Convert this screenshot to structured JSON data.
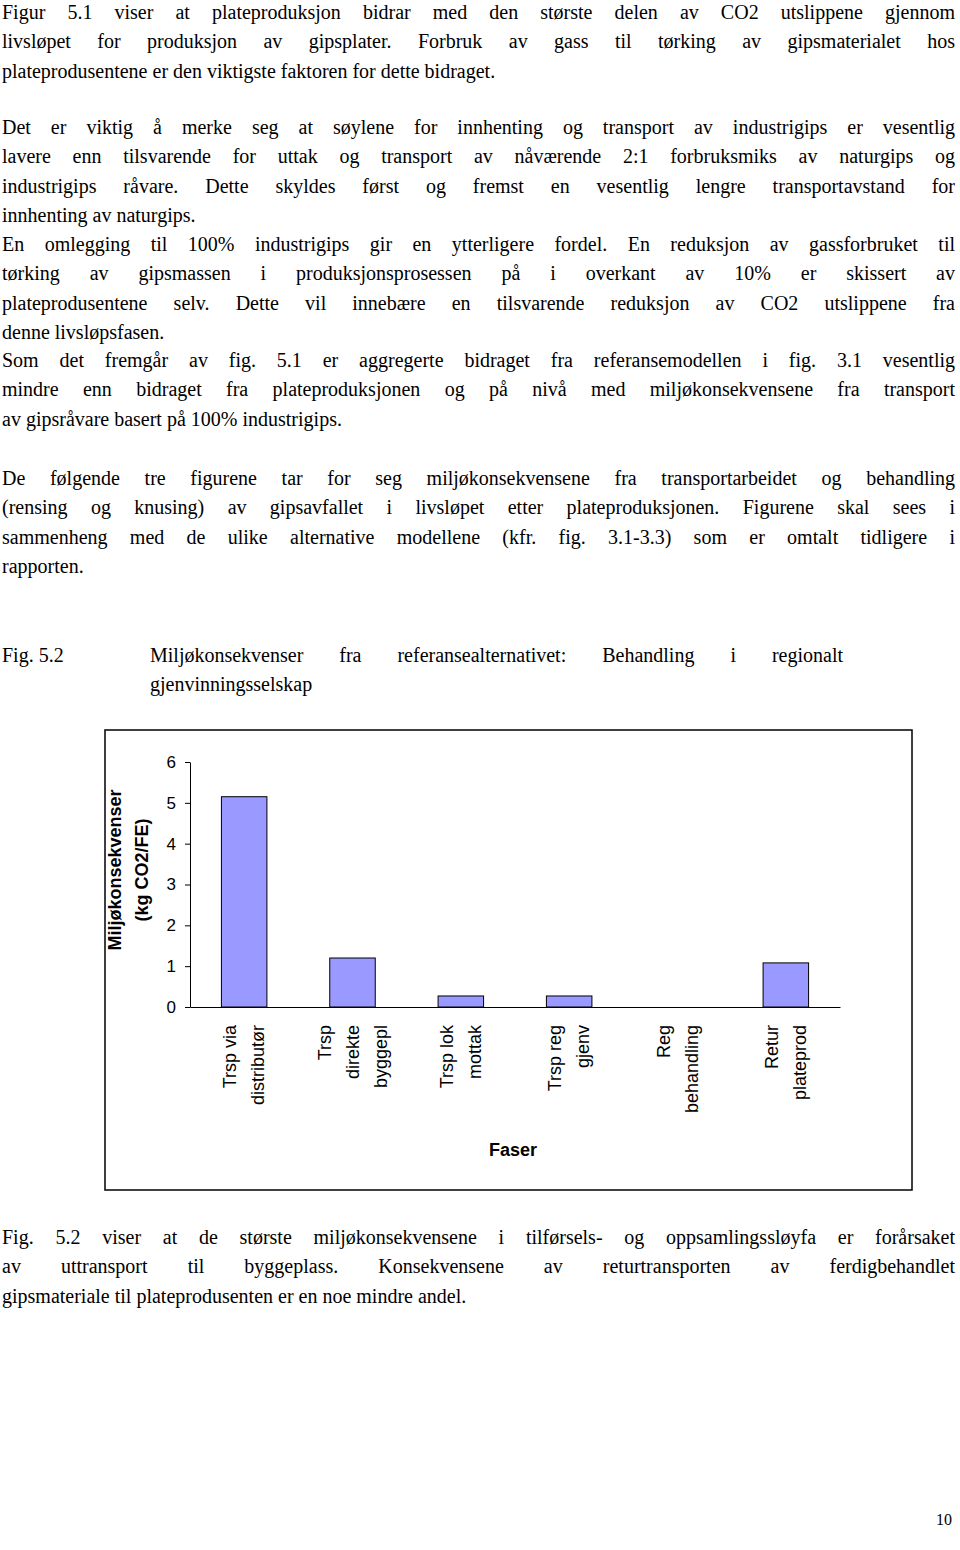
{
  "document": {
    "paragraphs": [
      [
        "Figur 5.1 viser at plateproduksjon bidrar med den største delen av CO2 utslippene gjennom",
        "livsløpet for produksjon av gipsplater.  Forbruk av gass til tørking av gipsmaterialet hos",
        "plateprodusentene er den viktigste faktoren for dette bidraget."
      ],
      [
        "Det er viktig å merke seg at søylene for innhenting og transport av industrigips er vesentlig",
        "lavere enn tilsvarende for uttak og transport av nåværende 2:1 forbruksmiks av naturgips og",
        "industrigips råvare. Dette skyldes først og fremst en vesentlig lengre transportavstand for",
        "innhenting av naturgips."
      ],
      [
        "En omlegging til 100% industrigips gir en ytterligere fordel. En reduksjon av gassforbruket til",
        "tørking av gipsmassen i produksjonsprosessen på i overkant av 10% er skissert av",
        "plateprodusentene selv. Dette vil innebære en tilsvarende reduksjon av CO2 utslippene fra",
        "denne livsløpsfasen."
      ],
      [
        "Som det fremgår av fig. 5.1 er aggregerte bidraget fra referansemodellen i fig. 3.1 vesentlig",
        "mindre enn bidraget fra plateproduksjonen og på nivå med miljøkonsekvensene fra transport",
        "av gipsråvare basert på 100% industrigips."
      ],
      [
        "De følgende tre figurene tar for seg miljøkonsekvensene fra transportarbeidet og behandling",
        "(rensing og knusing) av gipsavfallet i livsløpet etter plateproduksjonen.  Figurene skal sees i",
        "sammenheng med de ulike alternative modellene (kfr. fig. 3.1-3.3) som er omtalt tidligere i",
        "rapporten."
      ]
    ],
    "caption_number": "Fig. 5.2",
    "caption_lines": [
      "Miljøkonsekvenser fra referansealternativet:  Behandling i regionalt",
      "gjenvinningsselskap"
    ],
    "after_chart": [
      "Fig. 5.2 viser at de største miljøkonsekvensene i tilførsels- og oppsamlingssløyfa er forårsaket",
      "av uttransport til byggeplass. Konsekvensene av returtransporten av ferdigbehandlet",
      "gipsmateriale til plateprodusenten er en noe mindre andel."
    ],
    "page_number": 10
  },
  "chart_data": {
    "type": "bar",
    "y_label": [
      "Miljøkonsekvenser",
      "(kg CO2/FE)"
    ],
    "x_label": "Faser",
    "categories": [
      "Trsp via distributør",
      "Trsp direkte byggepl",
      "Trsp lok mottak",
      "Trsp reg gjenv",
      "Reg behandling",
      "Retur plateprod"
    ],
    "values": [
      5.15,
      1.2,
      0.27,
      0.27,
      0,
      1.08
    ],
    "color": "#9999ff",
    "ylim": [
      0,
      6
    ],
    "yticks": [
      0,
      1,
      2,
      3,
      4,
      5,
      6
    ],
    "grid": false,
    "data_labels": false
  }
}
